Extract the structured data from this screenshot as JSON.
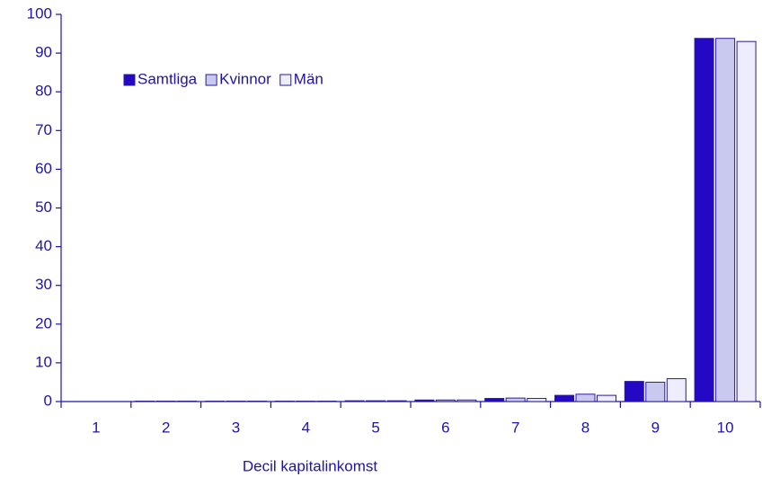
{
  "chart_data": {
    "type": "bar",
    "x_label": "Decil kapitalinkomst",
    "categories": [
      "1",
      "2",
      "3",
      "4",
      "5",
      "6",
      "7",
      "8",
      "9",
      "10"
    ],
    "series": [
      {
        "name": "Samtliga",
        "color": "#2308c4",
        "values": [
          0.0,
          0.1,
          0.1,
          0.1,
          0.2,
          0.4,
          0.8,
          1.6,
          5.2,
          93.8
        ]
      },
      {
        "name": "Kvinnor",
        "color": "#c9c9f0",
        "values": [
          0.0,
          0.1,
          0.1,
          0.1,
          0.2,
          0.4,
          0.9,
          1.9,
          5.0,
          93.8
        ]
      },
      {
        "name": "Män",
        "color": "#ededfb",
        "values": [
          0.0,
          0.1,
          0.1,
          0.1,
          0.2,
          0.4,
          0.8,
          1.6,
          5.9,
          93.0
        ]
      }
    ],
    "ylim": [
      0,
      100
    ],
    "yticks": [
      0,
      10,
      20,
      30,
      40,
      50,
      60,
      70,
      80,
      90,
      100
    ],
    "grid": false,
    "legend": "upper left"
  }
}
